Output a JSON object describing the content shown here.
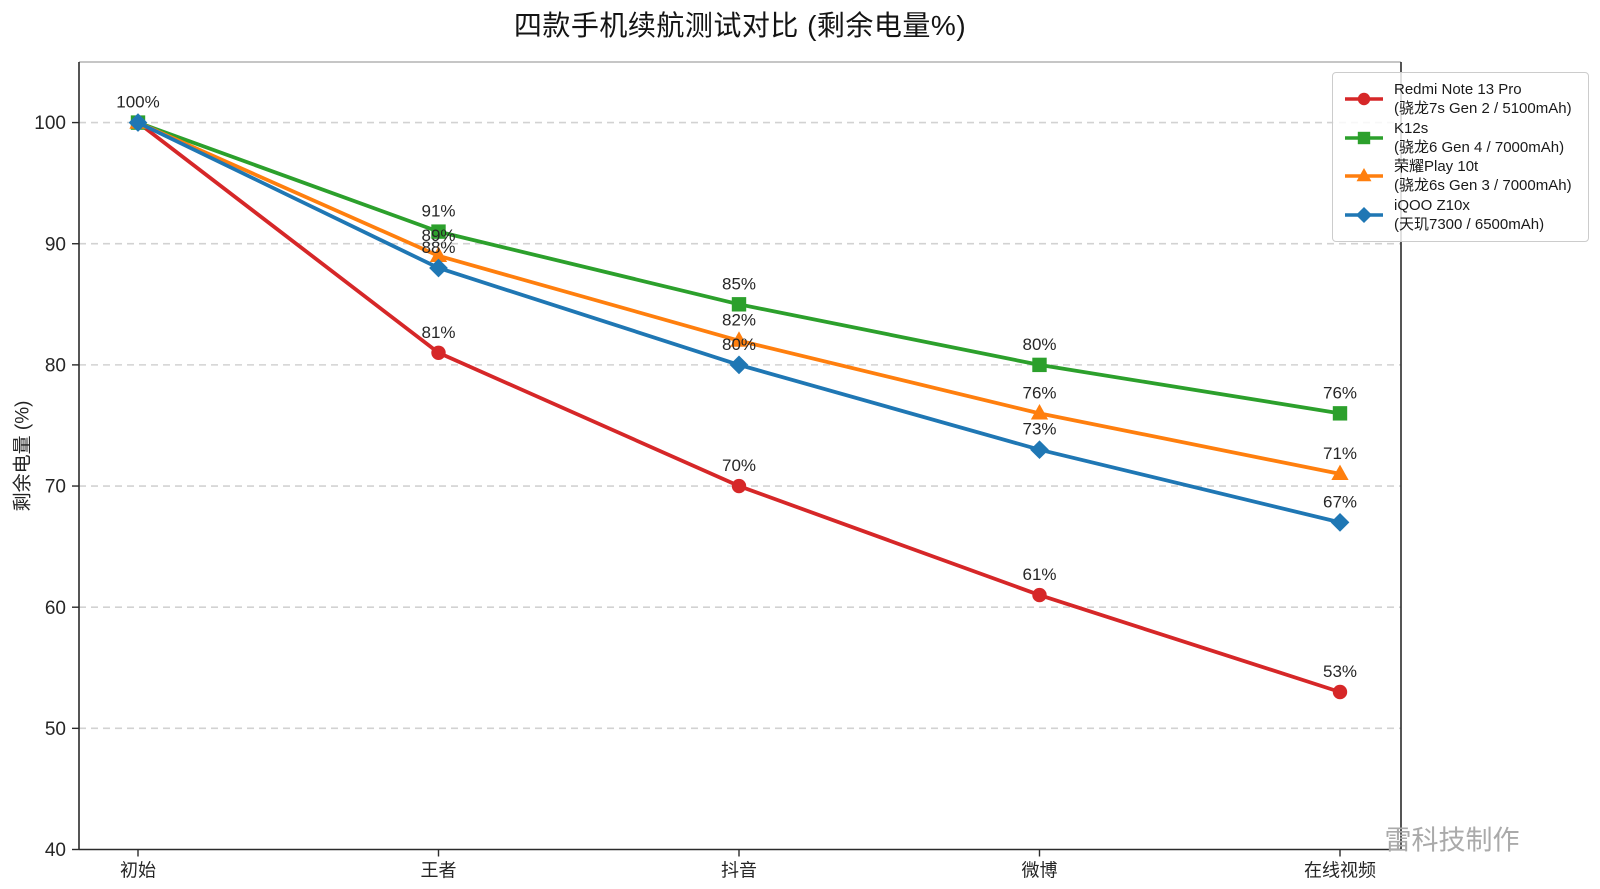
{
  "figure": {
    "watermark": "雷科技制作"
  },
  "chart_data": {
    "type": "line",
    "title": "四款手机续航测试对比 (剩余电量%)",
    "xlabel": "",
    "ylabel": "剩余电量 (%)",
    "categories": [
      "初始",
      "王者",
      "抖音",
      "微博",
      "在线视频"
    ],
    "ylim": [
      40,
      105
    ],
    "yticks": [
      40,
      50,
      60,
      70,
      80,
      90,
      100
    ],
    "ytick_labels": [
      "40",
      "50",
      "60",
      "70",
      "80",
      "90",
      "100"
    ],
    "grid": "horizontal-dashed",
    "legend_position": "upper-right",
    "colors": {
      "axis": "#2b2b2b",
      "top_spine": "#b3b3b3",
      "grid": "#d2d2d2",
      "point_label": "#262626",
      "watermark": "#aaaaaa"
    },
    "series": [
      {
        "name": "Redmi Note 13 Pro",
        "spec": "(骁龙7s Gen 2 / 5100mAh)",
        "color": "#d62728",
        "marker": "circle",
        "values": [
          100,
          81,
          70,
          61,
          53
        ],
        "labels": [
          "100%",
          "81%",
          "70%",
          "61%",
          "53%"
        ]
      },
      {
        "name": "K12s",
        "spec": "(骁龙6 Gen 4 / 7000mAh)",
        "color": "#2ca02c",
        "marker": "square",
        "values": [
          100,
          91,
          85,
          80,
          76
        ],
        "labels": [
          "100%",
          "91%",
          "85%",
          "80%",
          "76%"
        ]
      },
      {
        "name": "荣耀Play 10t",
        "spec": "(骁龙6s Gen 3 / 7000mAh)",
        "color": "#ff7f0e",
        "marker": "triangle",
        "values": [
          100,
          89,
          82,
          76,
          71
        ],
        "labels": [
          "100%",
          "89%",
          "82%",
          "76%",
          "71%"
        ]
      },
      {
        "name": "iQOO Z10x",
        "spec": "(天玑7300 / 6500mAh)",
        "color": "#1f77b4",
        "marker": "diamond",
        "values": [
          100,
          88,
          80,
          73,
          67
        ],
        "labels": [
          "100%",
          "88%",
          "80%",
          "73%",
          "67%"
        ]
      }
    ]
  }
}
